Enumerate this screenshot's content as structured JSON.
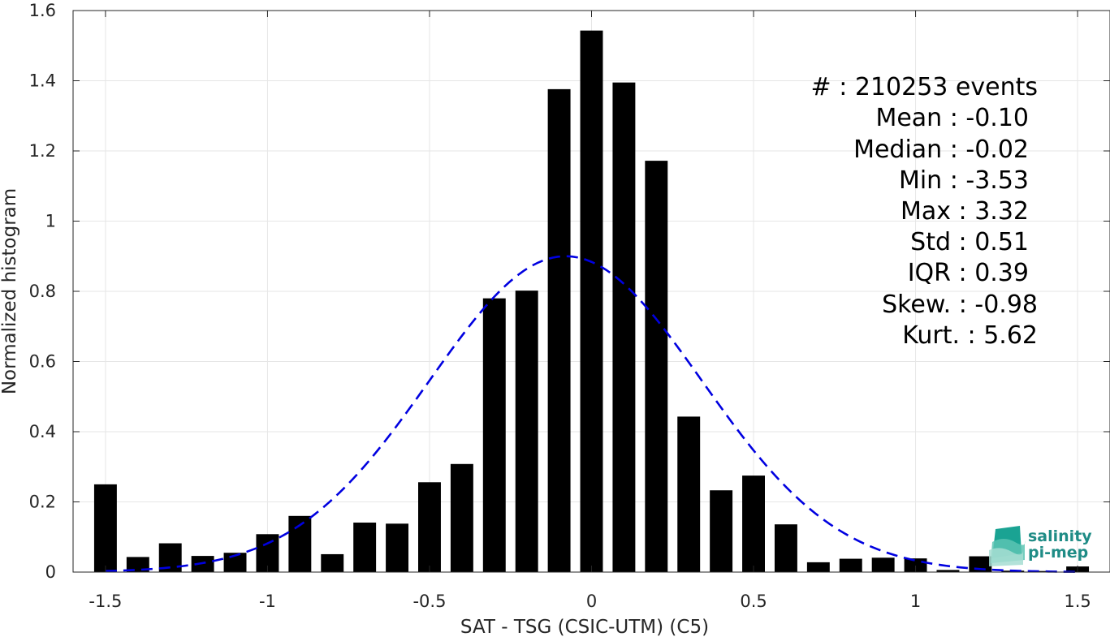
{
  "chart_data": {
    "type": "bar",
    "xlabel": "SAT - TSG (CSIC-UTM) (C5)",
    "ylabel": "Normalized histogram",
    "xlim": [
      -1.6,
      1.6
    ],
    "ylim": [
      0,
      1.6
    ],
    "grid": true,
    "xticks": [
      -1.5,
      -1,
      -0.5,
      0,
      0.5,
      1,
      1.5
    ],
    "xtick_labels": [
      "-1.5",
      "-1",
      "-0.5",
      "0",
      "0.5",
      "1",
      "1.5"
    ],
    "yticks": [
      0,
      0.2,
      0.4,
      0.6,
      0.8,
      1,
      1.2,
      1.4,
      1.6
    ],
    "ytick_labels": [
      "0",
      "0.2",
      "0.4",
      "0.6",
      "0.8",
      "1",
      "1.2",
      "1.4",
      "1.6"
    ],
    "bar_width": 0.07,
    "bar_color": "#000000",
    "bins": [
      {
        "x": -1.5,
        "y": 0.25
      },
      {
        "x": -1.4,
        "y": 0.043
      },
      {
        "x": -1.3,
        "y": 0.082
      },
      {
        "x": -1.2,
        "y": 0.046
      },
      {
        "x": -1.1,
        "y": 0.055
      },
      {
        "x": -1.0,
        "y": 0.108
      },
      {
        "x": -0.9,
        "y": 0.16
      },
      {
        "x": -0.8,
        "y": 0.051
      },
      {
        "x": -0.7,
        "y": 0.141
      },
      {
        "x": -0.6,
        "y": 0.138
      },
      {
        "x": -0.5,
        "y": 0.256
      },
      {
        "x": -0.4,
        "y": 0.308
      },
      {
        "x": -0.3,
        "y": 0.78
      },
      {
        "x": -0.2,
        "y": 0.802
      },
      {
        "x": -0.1,
        "y": 1.376
      },
      {
        "x": 0.0,
        "y": 1.543
      },
      {
        "x": 0.1,
        "y": 1.395
      },
      {
        "x": 0.2,
        "y": 1.172
      },
      {
        "x": 0.3,
        "y": 0.443
      },
      {
        "x": 0.4,
        "y": 0.233
      },
      {
        "x": 0.5,
        "y": 0.275
      },
      {
        "x": 0.6,
        "y": 0.136
      },
      {
        "x": 0.7,
        "y": 0.028
      },
      {
        "x": 0.8,
        "y": 0.038
      },
      {
        "x": 0.9,
        "y": 0.041
      },
      {
        "x": 1.0,
        "y": 0.039
      },
      {
        "x": 1.1,
        "y": 0.006
      },
      {
        "x": 1.2,
        "y": 0.045
      },
      {
        "x": 1.3,
        "y": 0.004
      },
      {
        "x": 1.4,
        "y": 0.003
      },
      {
        "x": 1.5,
        "y": 0.016
      }
    ],
    "fit_curve": {
      "type": "gaussian",
      "mean": -0.08,
      "std": 0.42,
      "peak": 0.9,
      "x_range": [
        -1.5,
        1.5
      ],
      "color": "#0000e0",
      "style": "dashed"
    },
    "stats_lines": [
      "#  : 210253 events",
      "Mean : -0.10",
      "Median : -0.02",
      "Min : -3.53",
      "Max : 3.32",
      "Std : 0.51",
      "IQR : 0.39",
      "Skew. : -0.98",
      "Kurt. : 5.62"
    ]
  },
  "logo": {
    "line1": "salinity",
    "line2": "pi-mep",
    "icon": "salinity-wave-icon",
    "color": "#1f8c86"
  }
}
